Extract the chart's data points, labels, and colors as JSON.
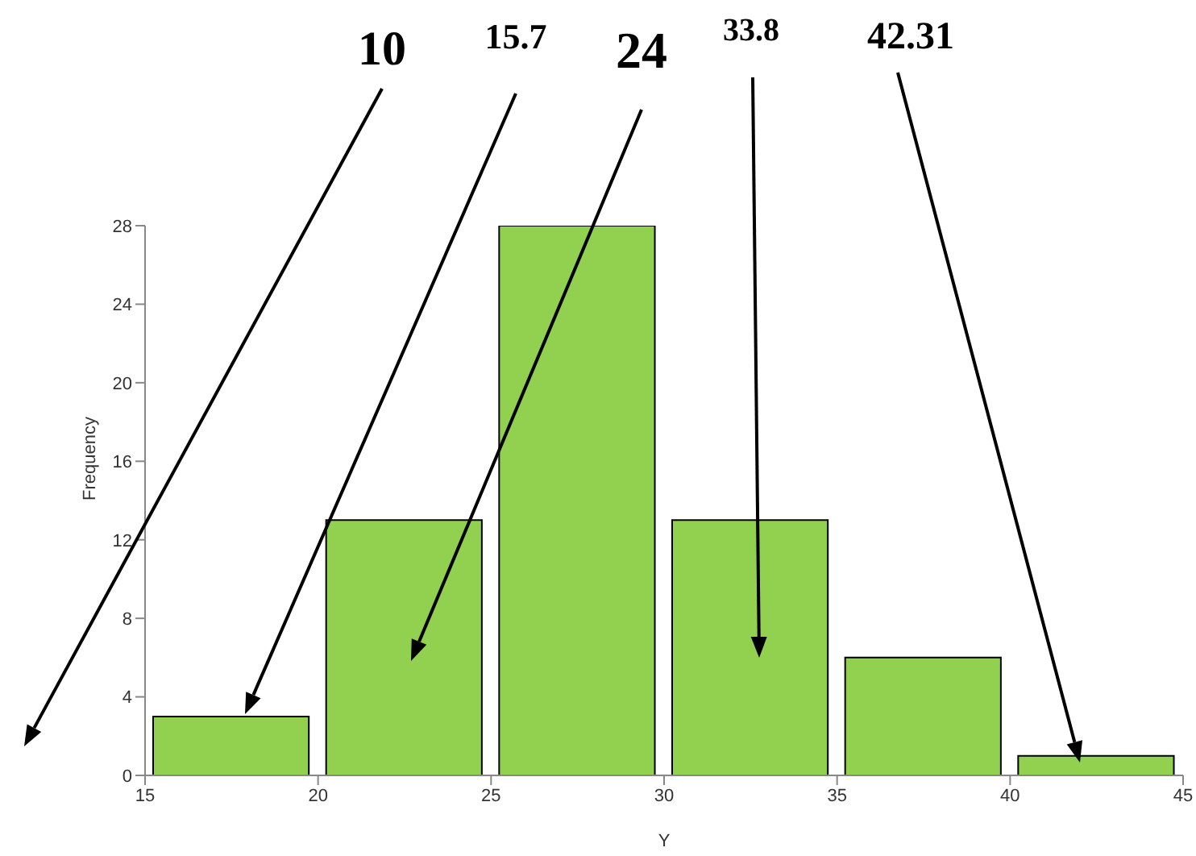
{
  "chart_data": {
    "type": "histogram",
    "xlabel": "Y",
    "ylabel": "Frequency",
    "bins": [
      15,
      20,
      25,
      30,
      35,
      40,
      45
    ],
    "values": [
      3,
      13,
      28,
      13,
      6,
      1
    ],
    "color": "#92d050",
    "xlim": [
      15,
      45
    ],
    "xticks": [
      15,
      20,
      25,
      30,
      35,
      40,
      45
    ],
    "ylim": [
      0,
      28
    ],
    "yticks": [
      0,
      4,
      8,
      12,
      16,
      20,
      24,
      28
    ],
    "grid": false,
    "legend": false,
    "annotations": [
      "10",
      "15.7",
      "24",
      "33.8",
      "42.31"
    ]
  }
}
